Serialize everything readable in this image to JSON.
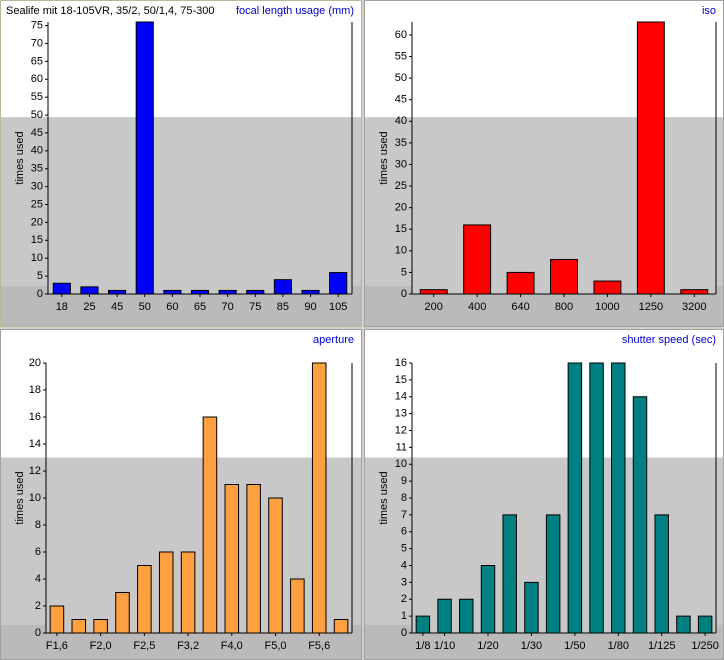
{
  "header": {
    "title": "Sealife mit 18-105VR, 35/2, 50/1,4, 75-300"
  },
  "chart_data": [
    {
      "type": "bar",
      "title": "focal length usage (mm)",
      "y_label": "times used",
      "categories": [
        "18",
        "25",
        "45",
        "50",
        "60",
        "65",
        "70",
        "75",
        "85",
        "90",
        "105"
      ],
      "values": [
        3,
        2,
        1,
        76,
        1,
        1,
        1,
        1,
        4,
        1,
        6
      ],
      "color": "#0000ff",
      "ylim": [
        0,
        76
      ],
      "yticks": [
        0,
        5,
        10,
        15,
        20,
        25,
        30,
        35,
        40,
        45,
        50,
        55,
        60,
        65,
        70,
        75
      ]
    },
    {
      "type": "bar",
      "title": "iso",
      "y_label": "times used",
      "categories": [
        "200",
        "400",
        "640",
        "800",
        "1000",
        "1250",
        "3200"
      ],
      "values": [
        1,
        16,
        5,
        8,
        3,
        63,
        1
      ],
      "color": "#ff0000",
      "ylim": [
        0,
        63
      ],
      "yticks": [
        0,
        5,
        10,
        15,
        20,
        25,
        30,
        35,
        40,
        45,
        50,
        55,
        60
      ]
    },
    {
      "type": "bar",
      "title": "aperture",
      "y_label": "times used",
      "categories": [
        "F1,6",
        null,
        "F2,0",
        null,
        "F2,5",
        null,
        "F3,2",
        null,
        "F4,0",
        null,
        "F5,0",
        null,
        "F5,6",
        null
      ],
      "values": [
        2,
        1,
        1,
        3,
        5,
        6,
        6,
        16,
        11,
        11,
        10,
        4,
        20,
        1
      ],
      "color": "#ffa040",
      "ylim": [
        0,
        20
      ],
      "yticks": [
        0,
        2,
        4,
        6,
        8,
        10,
        12,
        14,
        16,
        18,
        20
      ]
    },
    {
      "type": "bar",
      "title": "shutter speed (sec)",
      "y_label": "times used",
      "categories": [
        "1/8",
        "1/10",
        null,
        "1/20",
        null,
        "1/30",
        null,
        "1/50",
        null,
        "1/80",
        null,
        "1/125",
        null,
        "1/250"
      ],
      "values": [
        1,
        2,
        2,
        4,
        7,
        3,
        7,
        16,
        16,
        16,
        14,
        7,
        1,
        1
      ],
      "color": "#008080",
      "ylim": [
        0,
        16
      ],
      "yticks": [
        0,
        1,
        2,
        3,
        4,
        5,
        6,
        7,
        8,
        9,
        10,
        11,
        12,
        13,
        14,
        15,
        16
      ]
    }
  ]
}
